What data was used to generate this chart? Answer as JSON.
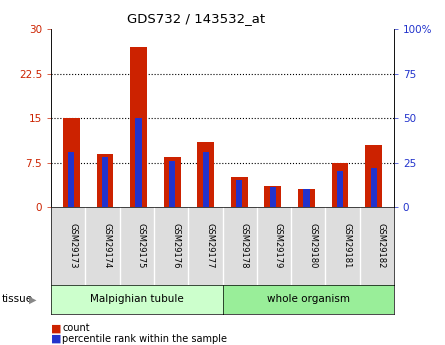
{
  "title": "GDS732 / 143532_at",
  "categories": [
    "GSM29173",
    "GSM29174",
    "GSM29175",
    "GSM29176",
    "GSM29177",
    "GSM29178",
    "GSM29179",
    "GSM29180",
    "GSM29181",
    "GSM29182"
  ],
  "count_values": [
    15.0,
    9.0,
    27.0,
    8.5,
    11.0,
    5.0,
    3.5,
    3.0,
    7.5,
    10.5
  ],
  "percentile_values": [
    31,
    28,
    50,
    26,
    31,
    15,
    11,
    10,
    20,
    22
  ],
  "ylim_left": [
    0,
    30
  ],
  "ylim_right": [
    0,
    100
  ],
  "yticks_left": [
    0,
    7.5,
    15,
    22.5,
    30
  ],
  "ytick_labels_left": [
    "0",
    "7.5",
    "15",
    "22.5",
    "30"
  ],
  "yticks_right": [
    0,
    25,
    50,
    75,
    100
  ],
  "ytick_labels_right": [
    "0",
    "25",
    "50",
    "75",
    "100%"
  ],
  "bar_color_count": "#cc2200",
  "bar_color_pct": "#2233cc",
  "red_bar_width": 0.5,
  "blue_bar_width": 0.18,
  "bg_color_malpighian": "#ccffcc",
  "bg_color_whole": "#99ee99",
  "grid_yticks": [
    7.5,
    15,
    22.5
  ],
  "tissue_groups": [
    {
      "label": "Malpighian tubule",
      "start": 0,
      "end": 5
    },
    {
      "label": "whole organism",
      "start": 5,
      "end": 10
    }
  ]
}
